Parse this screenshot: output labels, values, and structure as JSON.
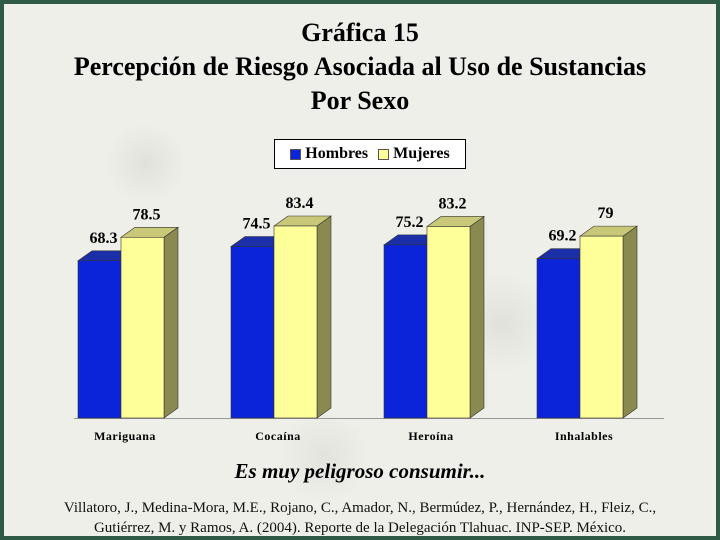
{
  "title": {
    "line1": "Gráfica 15",
    "line2": "Percepción de Riesgo Asociada al Uso de Sustancias",
    "line3": "Por Sexo"
  },
  "subtitle": "Es muy peligroso consumir...",
  "citation": "Villatoro, J., Medina-Mora, M.E., Rojano, C., Amador, N., Bermúdez, P., Hernández, H., Fleiz, C., Gutiérrez, M. y Ramos, A. (2004). Reporte de la Delegación Tlahuac. INP-SEP. México.",
  "colors": {
    "hombres": "#0b23d9",
    "mujeres": "#ffff99"
  },
  "chart_data": {
    "type": "bar",
    "categories": [
      "Mariguana",
      "Cocaína",
      "Heroína",
      "Inhalables"
    ],
    "series": [
      {
        "name": "Hombres",
        "values": [
          68.3,
          74.5,
          75.2,
          69.2
        ],
        "labels": [
          "68.3",
          "74.5",
          "75.2",
          "69.2"
        ]
      },
      {
        "name": "Mujeres",
        "values": [
          78.5,
          83.4,
          83.2,
          79
        ],
        "labels": [
          "78.5",
          "83.4",
          "83.2",
          "79"
        ]
      }
    ],
    "ylim": [
      0,
      83.4
    ],
    "legend": "top-center",
    "grid": false
  }
}
